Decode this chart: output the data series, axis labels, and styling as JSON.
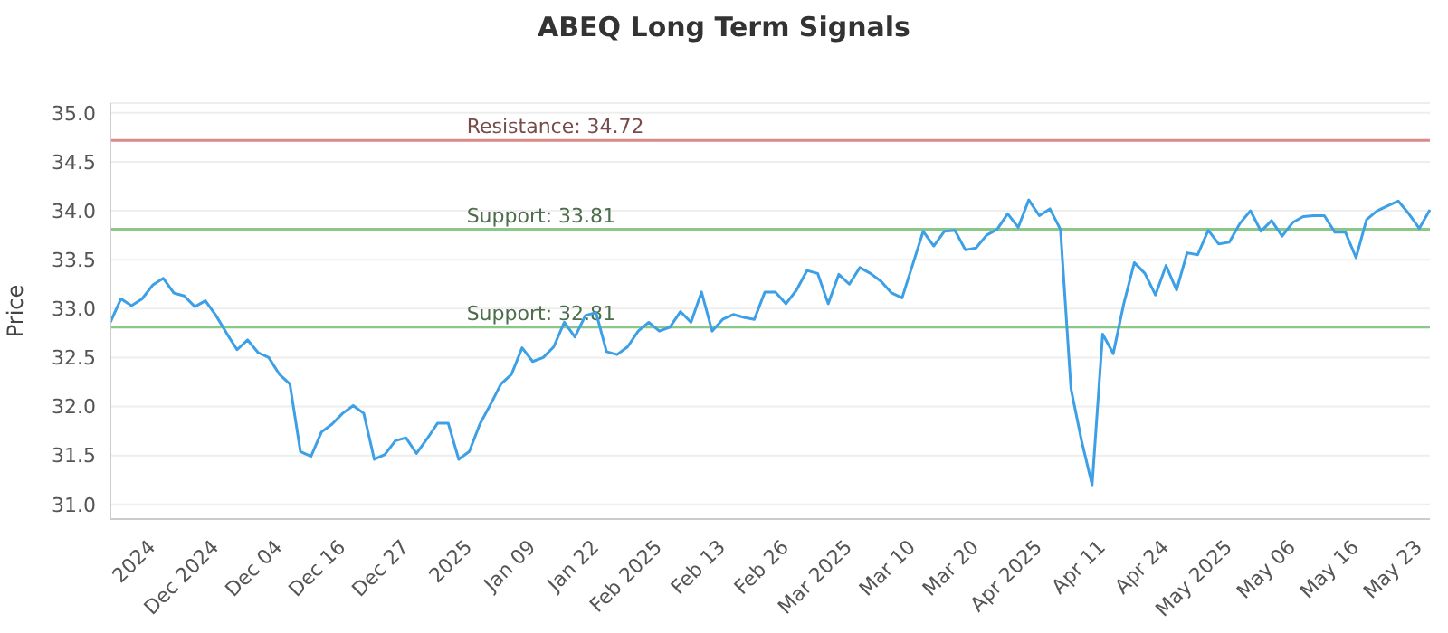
{
  "chart_data": {
    "type": "line",
    "title": "ABEQ Long Term Signals",
    "ylabel": "Price",
    "categories": [
      null,
      null,
      null,
      null,
      "2024",
      null,
      null,
      null,
      null,
      null,
      "Dec 2024",
      null,
      null,
      null,
      null,
      null,
      "Dec 04",
      null,
      null,
      null,
      null,
      null,
      "Dec 16",
      null,
      null,
      null,
      null,
      null,
      "Dec 27",
      null,
      null,
      null,
      null,
      null,
      "2025",
      null,
      null,
      null,
      null,
      null,
      "Jan 09",
      null,
      null,
      null,
      null,
      null,
      "Jan 22",
      null,
      null,
      null,
      null,
      null,
      "Feb 2025",
      null,
      null,
      null,
      null,
      null,
      "Feb 13",
      null,
      null,
      null,
      null,
      null,
      "Feb 26",
      null,
      null,
      null,
      null,
      null,
      "Mar 2025",
      null,
      null,
      null,
      null,
      null,
      "Mar 10",
      null,
      null,
      null,
      null,
      null,
      "Mar 20",
      null,
      null,
      null,
      null,
      null,
      "Apr 2025",
      null,
      null,
      null,
      null,
      null,
      "Apr 11",
      null,
      null,
      null,
      null,
      null,
      "Apr 24",
      null,
      null,
      null,
      null,
      null,
      "May 2025",
      null,
      null,
      null,
      null,
      null,
      "May 06",
      null,
      null,
      null,
      null,
      null,
      "May 16",
      null,
      null,
      null,
      null,
      null,
      "May 23",
      null
    ],
    "series": [
      {
        "color": "#3d9fe6",
        "values": [
          32.86,
          33.1,
          33.03,
          33.1,
          33.24,
          33.31,
          33.16,
          33.13,
          33.02,
          33.08,
          32.93,
          32.75,
          32.58,
          32.68,
          32.55,
          32.5,
          32.33,
          32.23,
          31.54,
          31.49,
          31.74,
          31.82,
          31.93,
          32.01,
          31.93,
          31.46,
          31.51,
          31.65,
          31.68,
          31.52,
          31.67,
          31.83,
          31.83,
          31.46,
          31.54,
          31.82,
          32.02,
          32.23,
          32.33,
          32.6,
          32.46,
          32.5,
          32.61,
          32.86,
          32.71,
          32.93,
          32.96,
          32.56,
          32.53,
          32.61,
          32.77,
          32.86,
          32.77,
          32.81,
          32.97,
          32.86,
          33.17,
          32.77,
          32.89,
          32.94,
          32.91,
          32.89,
          33.17,
          33.17,
          33.05,
          33.19,
          33.39,
          33.36,
          33.05,
          33.35,
          33.25,
          33.42,
          33.36,
          33.28,
          33.16,
          33.11,
          33.45,
          33.79,
          33.64,
          33.79,
          33.8,
          33.6,
          33.62,
          33.75,
          33.81,
          33.97,
          33.83,
          34.11,
          33.95,
          34.02,
          33.81,
          32.18,
          31.65,
          31.2,
          32.74,
          32.54,
          33.05,
          33.47,
          33.36,
          33.14,
          33.44,
          33.19,
          33.57,
          33.55,
          33.8,
          33.66,
          33.68,
          33.87,
          34.0,
          33.79,
          33.9,
          33.74,
          33.88,
          33.94,
          33.95,
          33.95,
          33.78,
          33.78,
          33.52,
          33.91,
          34.0,
          34.05,
          34.1,
          33.97,
          33.82,
          34.01
        ]
      }
    ],
    "ylim": [
      30.85,
      35.1
    ],
    "yticks": [
      {
        "value": 31,
        "label": "31.0"
      },
      31.5,
      {
        "value": 32,
        "label": "32.0"
      },
      32.5,
      {
        "value": 33,
        "label": "33.0"
      },
      33.5,
      {
        "value": 34,
        "label": "34.0"
      },
      34.5,
      {
        "value": 35,
        "label": "35.0"
      }
    ],
    "ref_lines": [
      {
        "axis": "y",
        "value": 34.72,
        "label": "Resistance: 34.72",
        "color": "#d98a86"
      },
      {
        "axis": "y",
        "value": 33.81,
        "label": "Support: 33.81",
        "color": "#8cc78a"
      },
      {
        "axis": "y",
        "value": 32.81,
        "label": "Support: 32.81",
        "color": "#8cc78a"
      }
    ],
    "grid": "y",
    "legend": false,
    "marker": "none",
    "line_style": "solid"
  }
}
